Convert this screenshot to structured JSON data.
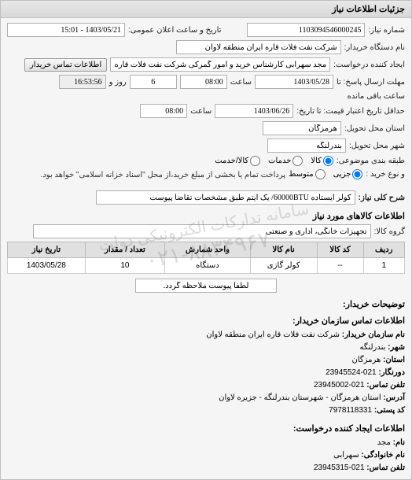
{
  "panel": {
    "title": "جزئیات اطلاعات نیاز"
  },
  "form": {
    "number_label": "شماره نیاز:",
    "number": "1103094546000245",
    "announce_label": "تاریخ و ساعت اعلان عمومی:",
    "announce": "1403/05/21 - 15:01",
    "buyer_org_label": "نام دستگاه خریدار:",
    "buyer_org": "شرکت نفت فلات قاره ایران منطقه لاوان",
    "requester_label": "ایجاد کننده درخواست:",
    "requester": "مجد سهرابی کارشناس خرید و امور گمرکی شرکت نفت فلات قاره ایران منطقه",
    "contact_btn": "اطلاعات تماس خریدار",
    "deadline_label": "مهلت ارسال پاسخ: تا",
    "deadline_date": "1403/05/28",
    "time_label": "ساعت",
    "deadline_time": "08:00",
    "days_left": "6",
    "days_left_label": "روز و",
    "time_left": "16:53:56",
    "time_left_label": "ساعت باقی مانده",
    "validity_label": "حداقل تاریخ اعتبار قیمت: تا تاریخ:",
    "validity_date": "1403/06/26",
    "validity_time": "08:00",
    "delivery_province_label": "استان محل تحویل:",
    "delivery_province": "هرمزگان",
    "delivery_city_label": "شهر محل تحویل:",
    "delivery_city": "بندرلنگه",
    "subject_type_label": "طبقه بندی موضوعی:",
    "radio_kala": "کالا",
    "radio_khadamat": "خدمات",
    "radio_kala_khadamat": "کالا/خدمت",
    "buy_type_label": "و نوع خرید :",
    "radio_jozi": "جزیی",
    "radio_motevaset": "متوسط",
    "payment_note": "پرداخت تمام یا بخشی از مبلغ خرید،از محل \"اسناد خزانه اسلامی\" خواهد بود.",
    "desc_label": "شرح کلی نیاز:",
    "desc": "کولر ایستاده 60000BTU/ یک آیتم طبق مشخصات تقاضا پیوست"
  },
  "items_section": {
    "title": "اطلاعات کالاهای مورد نیاز",
    "group_label": "گروه کالا:",
    "group": "تجهیزات خانگی، اداری و صنعتی",
    "columns": [
      "ردیف",
      "کد کالا",
      "نام کالا",
      "واحد شمارش",
      "تعداد / مقدار",
      "تاریخ نیاز"
    ],
    "rows": [
      [
        "1",
        "--",
        "کولر گازی",
        "دستگاه",
        "10",
        "1403/05/28"
      ]
    ],
    "attach_note": "لطفاً پیوست ملاحظه گردد."
  },
  "buyer_info": {
    "title": "توضیحات خریدار:",
    "contact_title": "اطلاعات تماس سازمان خریدار:",
    "org_name_label": "نام سازمان خریدار:",
    "org_name": "شرکت نفت فلات قاره ایران منطقه لاوان",
    "city_label": "شهر:",
    "city": "بندرلنگه",
    "province_label": "استان:",
    "province": "هرمزگان",
    "fax_label": "دورنگار:",
    "fax": "021-23945524",
    "phone_label": "تلفن تماس:",
    "phone": "021-23945002",
    "address_label": "آدرس:",
    "address": "استان هرمزگان - شهرستان بندرلنگه - جزیره لاوان",
    "postal_label": "کد پستی:",
    "postal": "7978118331",
    "creator_title": "اطلاعات ایجاد کننده درخواست:",
    "name_label": "نام:",
    "name": "مجد",
    "lastname_label": "نام خانوادگی:",
    "lastname": "سهرابی",
    "phone2_label": "تلفن تماس:",
    "phone2": "021-23945315"
  },
  "watermark": {
    "line1": "سامانه تدارکات الکترونیکی دولت",
    "line2": "۰۲۱-۸۸۳۴۹۶۷"
  }
}
